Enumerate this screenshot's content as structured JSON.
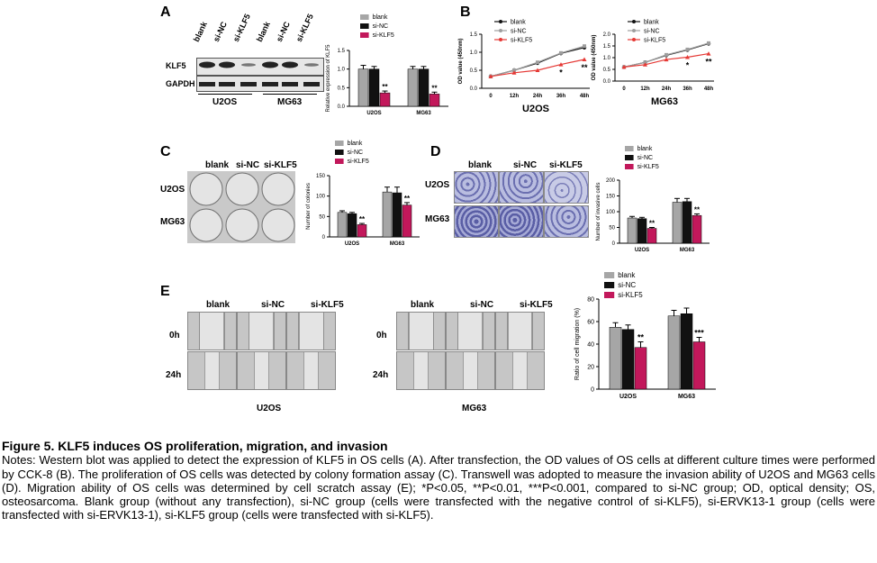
{
  "panels": {
    "A": "A",
    "B": "B",
    "C": "C",
    "D": "D",
    "E": "E"
  },
  "colors": {
    "blank": "#a6a6a6",
    "sinc": "#111111",
    "siklf5": "#c2185b",
    "line_sinc": "#9e9e9e",
    "line_siklf5": "#e53935"
  },
  "legend": {
    "blank": "blank",
    "sinc": "si-NC",
    "siklf5": "si-KLF5"
  },
  "panelA": {
    "lanes": [
      "blank",
      "si-NC",
      "si-KLF5",
      "blank",
      "si-NC",
      "si-KLF5"
    ],
    "rows": [
      "KLF5",
      "GAPDH"
    ],
    "groups": [
      "U2OS",
      "MG63"
    ]
  },
  "panelC": {
    "cols": [
      "blank",
      "si-NC",
      "si-KLF5"
    ],
    "rows": [
      "U2OS",
      "MG63"
    ]
  },
  "panelD": {
    "cols": [
      "blank",
      "si-NC",
      "si-KLF5"
    ],
    "rows": [
      "U2OS",
      "MG63"
    ]
  },
  "panelE": {
    "cols": [
      "blank",
      "si-NC",
      "si-KLF5"
    ],
    "rows": [
      "0h",
      "24h"
    ],
    "groups": [
      "U2OS",
      "MG63"
    ]
  },
  "caption": {
    "title": "Figure 5. KLF5 induces OS proliferation, migration, and invasion",
    "body": "Notes: Western blot was applied to detect the expression of KLF5 in OS cells (A). After transfection, the OD values of OS cells at different culture times were performed by CCK-8 (B). The proliferation of OS cells was detected by colony formation assay (C). Transwell was adopted to measure the invasion ability of U2OS and MG63 cells (D). Migration ability of OS cells was determined by cell scratch assay (E); *P<0.05, **P<0.01, ***P<0.001, compared to si-NC group; OD, optical density; OS, osteosarcoma. Blank group (without any transfection), si-NC group (cells were transfected with the negative control of si-KLF5), si-ERVK13-1 group (cells were transfected with si-ERVK13-1), si-KLF5 group (cells were transfected with si-KLF5)."
  },
  "chart_data": [
    {
      "id": "A-bar",
      "type": "bar",
      "ylabel": "Relative expression of KLF5",
      "categories": [
        "U2OS",
        "MG63"
      ],
      "ylim": [
        0,
        1.5
      ],
      "yticks": [
        "0.0",
        "0.5",
        "1.0",
        "1.5"
      ],
      "series": [
        {
          "name": "blank",
          "values": [
            1.0,
            1.0
          ],
          "err": [
            0.1,
            0.07
          ]
        },
        {
          "name": "si-NC",
          "values": [
            1.0,
            1.0
          ],
          "err": [
            0.07,
            0.07
          ]
        },
        {
          "name": "si-KLF5",
          "values": [
            0.36,
            0.33
          ],
          "err": [
            0.05,
            0.05
          ]
        }
      ],
      "annotations": [
        "**",
        "**"
      ]
    },
    {
      "id": "B-U2OS",
      "type": "line",
      "title": "U2OS",
      "ylabel": "OD value (450nm)",
      "x": [
        "0",
        "12h",
        "24h",
        "36h",
        "48h"
      ],
      "ylim": [
        0,
        1.5
      ],
      "yticks": [
        "0.0",
        "0.5",
        "1.0",
        "1.5"
      ],
      "series": [
        {
          "name": "blank",
          "values": [
            0.33,
            0.5,
            0.7,
            0.97,
            1.13
          ]
        },
        {
          "name": "si-NC",
          "values": [
            0.33,
            0.5,
            0.72,
            0.98,
            1.17
          ]
        },
        {
          "name": "si-KLF5",
          "values": [
            0.33,
            0.43,
            0.5,
            0.66,
            0.8
          ]
        }
      ],
      "annotations": [
        "*",
        "**"
      ]
    },
    {
      "id": "B-MG63",
      "type": "line",
      "title": "MG63",
      "ylabel": "OD value (450nm)",
      "x": [
        "0",
        "12h",
        "24h",
        "36h",
        "48h"
      ],
      "ylim": [
        0,
        2.0
      ],
      "yticks": [
        "0.0",
        "0.5",
        "1.0",
        "1.5",
        "2.0"
      ],
      "series": [
        {
          "name": "blank",
          "values": [
            0.6,
            0.8,
            1.1,
            1.33,
            1.6
          ]
        },
        {
          "name": "si-NC",
          "values": [
            0.6,
            0.8,
            1.12,
            1.35,
            1.62
          ]
        },
        {
          "name": "si-KLF5",
          "values": [
            0.6,
            0.7,
            0.92,
            1.02,
            1.17
          ]
        }
      ],
      "annotations": [
        "*",
        "**"
      ]
    },
    {
      "id": "C-bar",
      "type": "bar",
      "ylabel": "Number of colonies",
      "categories": [
        "U2OS",
        "MG63"
      ],
      "ylim": [
        0,
        150
      ],
      "yticks": [
        "0",
        "50",
        "100",
        "150"
      ],
      "series": [
        {
          "name": "blank",
          "values": [
            60,
            110
          ],
          "err": [
            4,
            12
          ]
        },
        {
          "name": "si-NC",
          "values": [
            57,
            108
          ],
          "err": [
            3,
            14
          ]
        },
        {
          "name": "si-KLF5",
          "values": [
            30,
            78
          ],
          "err": [
            3,
            6
          ]
        }
      ],
      "annotations": [
        "**",
        "**"
      ]
    },
    {
      "id": "D-bar",
      "type": "bar",
      "ylabel": "Number of invasive cells",
      "categories": [
        "U2OS",
        "MG63"
      ],
      "ylim": [
        0,
        200
      ],
      "yticks": [
        "0",
        "50",
        "100",
        "150",
        "200"
      ],
      "series": [
        {
          "name": "blank",
          "values": [
            80,
            130
          ],
          "err": [
            5,
            12
          ]
        },
        {
          "name": "si-NC",
          "values": [
            78,
            132
          ],
          "err": [
            4,
            10
          ]
        },
        {
          "name": "si-KLF5",
          "values": [
            47,
            88
          ],
          "err": [
            3,
            5
          ]
        }
      ],
      "annotations": [
        "**",
        "**"
      ]
    },
    {
      "id": "E-bar",
      "type": "bar",
      "ylabel": "Ratio of cell migration (%)",
      "categories": [
        "U2OS",
        "MG63"
      ],
      "ylim": [
        0,
        80
      ],
      "yticks": [
        "0",
        "20",
        "40",
        "60",
        "80"
      ],
      "series": [
        {
          "name": "blank",
          "values": [
            55,
            65
          ],
          "err": [
            4,
            5
          ]
        },
        {
          "name": "si-NC",
          "values": [
            53,
            67
          ],
          "err": [
            4,
            5
          ]
        },
        {
          "name": "si-KLF5",
          "values": [
            37,
            42
          ],
          "err": [
            5,
            4
          ]
        }
      ],
      "annotations": [
        "**",
        "***"
      ]
    }
  ]
}
